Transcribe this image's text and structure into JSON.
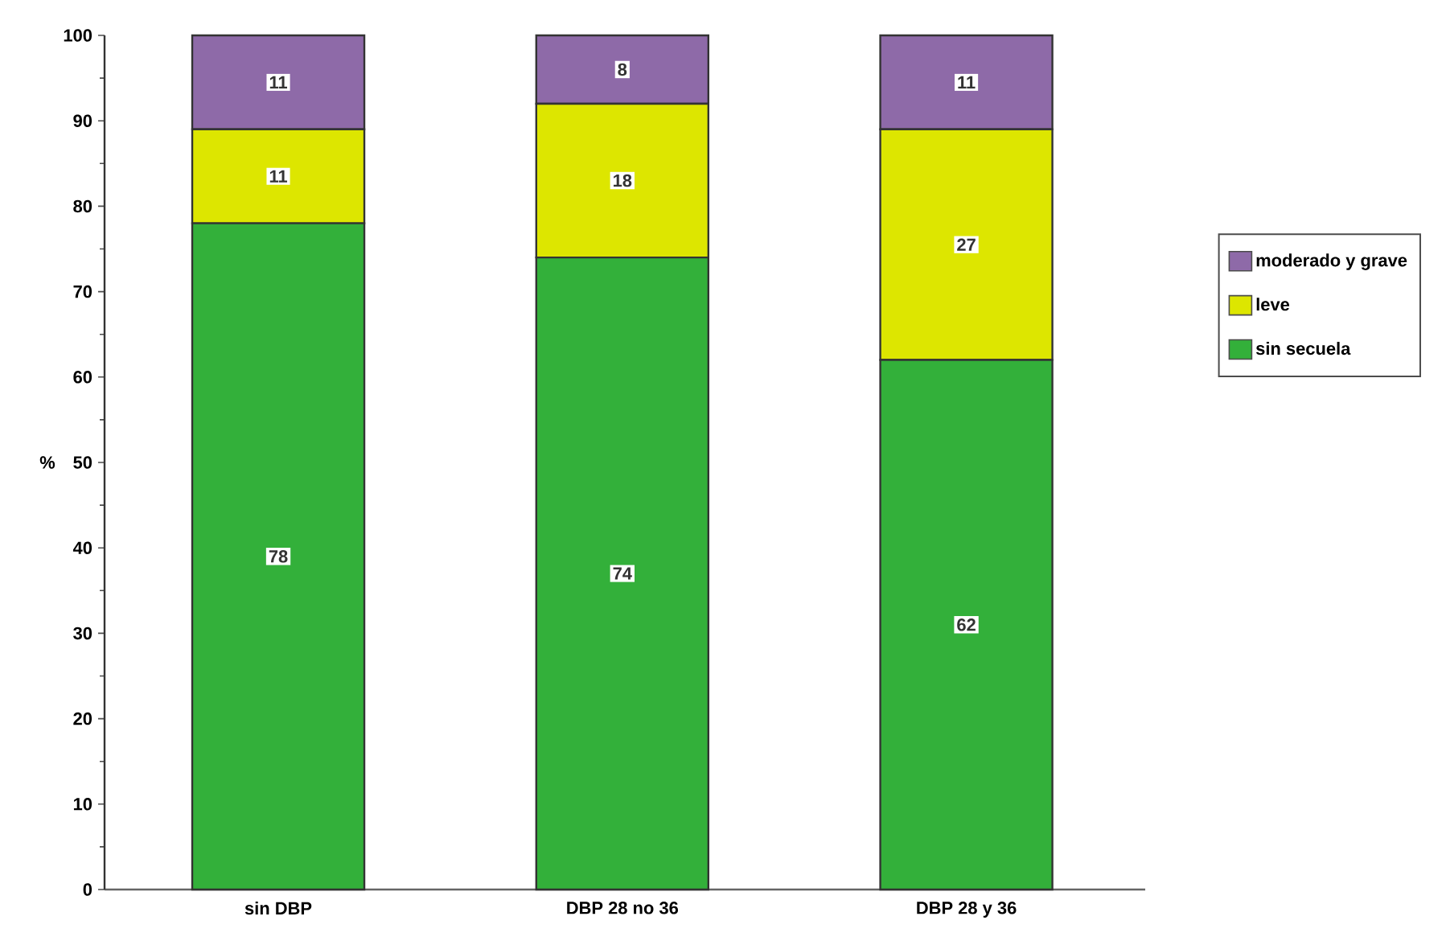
{
  "chart_data": {
    "type": "bar",
    "stacked": true,
    "ylabel": "%",
    "categories": [
      "sin DBP",
      "DBP 28 no 36",
      "DBP 28 y 36"
    ],
    "series": [
      {
        "name": "sin secuela",
        "color": "#33b03a",
        "values": [
          78,
          74,
          62
        ]
      },
      {
        "name": "leve",
        "color": "#dde600",
        "values": [
          11,
          18,
          27
        ]
      },
      {
        "name": "moderado y grave",
        "color": "#8e6aa8",
        "values": [
          11,
          8,
          11
        ]
      }
    ],
    "ylim": [
      0,
      100
    ],
    "yticks": [
      0,
      10,
      20,
      30,
      40,
      50,
      60,
      70,
      80,
      90,
      100
    ],
    "data_labels": true,
    "legend": "right",
    "grid": false
  }
}
